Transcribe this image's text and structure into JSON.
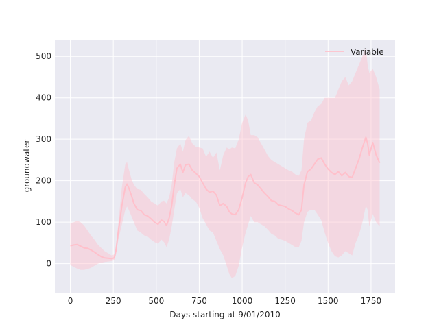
{
  "colors": {
    "background": "#eaeaf2",
    "grid": "#ffffff",
    "series": "#ffc0cb"
  },
  "chart_data": {
    "type": "line",
    "title": "",
    "xlabel": "Days starting at 9/01/2010",
    "ylabel": "groundwater",
    "xlim": [
      -90,
      1890
    ],
    "ylim": [
      -70,
      540
    ],
    "xticks": [
      0,
      250,
      500,
      750,
      1000,
      1250,
      1500,
      1750
    ],
    "yticks": [
      0,
      100,
      200,
      300,
      400,
      500
    ],
    "grid": true,
    "legend_position": "top-right",
    "series": [
      {
        "name": "Variable",
        "band": "shaded uncertainty band",
        "x": [
          0,
          20,
          40,
          60,
          80,
          100,
          120,
          140,
          160,
          180,
          200,
          220,
          240,
          255,
          265,
          280,
          300,
          320,
          330,
          340,
          355,
          370,
          390,
          410,
          430,
          450,
          470,
          490,
          510,
          530,
          545,
          560,
          575,
          590,
          605,
          620,
          640,
          655,
          670,
          690,
          710,
          730,
          750,
          770,
          790,
          810,
          830,
          850,
          870,
          890,
          910,
          925,
          940,
          960,
          980,
          1000,
          1020,
          1035,
          1050,
          1070,
          1090,
          1110,
          1130,
          1150,
          1170,
          1190,
          1210,
          1230,
          1250,
          1270,
          1290,
          1310,
          1330,
          1345,
          1360,
          1380,
          1400,
          1420,
          1440,
          1460,
          1480,
          1500,
          1520,
          1540,
          1560,
          1580,
          1600,
          1620,
          1640,
          1660,
          1680,
          1700,
          1720,
          1730,
          1740,
          1760,
          1780,
          1800
        ],
        "y": [
          43,
          45,
          46,
          42,
          38,
          37,
          33,
          28,
          22,
          17,
          14,
          13,
          12,
          14,
          30,
          80,
          140,
          185,
          192,
          183,
          165,
          145,
          130,
          128,
          118,
          115,
          108,
          100,
          95,
          105,
          102,
          92,
          110,
          140,
          190,
          230,
          240,
          220,
          238,
          240,
          225,
          218,
          210,
          195,
          180,
          172,
          175,
          165,
          140,
          145,
          138,
          125,
          120,
          118,
          130,
          160,
          195,
          210,
          215,
          195,
          190,
          180,
          170,
          162,
          152,
          150,
          142,
          140,
          138,
          132,
          128,
          122,
          118,
          130,
          190,
          222,
          228,
          240,
          252,
          255,
          240,
          228,
          220,
          215,
          222,
          212,
          220,
          210,
          208,
          230,
          252,
          280,
          305,
          290,
          262,
          292,
          262,
          243
        ],
        "upper": [
          98,
          100,
          103,
          100,
          92,
          80,
          68,
          58,
          46,
          38,
          30,
          25,
          20,
          22,
          40,
          100,
          185,
          240,
          245,
          228,
          205,
          190,
          180,
          178,
          168,
          160,
          150,
          145,
          140,
          150,
          152,
          145,
          160,
          190,
          245,
          278,
          290,
          270,
          298,
          308,
          290,
          282,
          280,
          278,
          258,
          270,
          255,
          268,
          225,
          262,
          280,
          275,
          280,
          278,
          300,
          340,
          360,
          345,
          310,
          310,
          305,
          290,
          275,
          260,
          250,
          245,
          240,
          235,
          230,
          225,
          222,
          215,
          212,
          225,
          300,
          340,
          345,
          365,
          380,
          385,
          400,
          400,
          400,
          400,
          420,
          440,
          450,
          430,
          440,
          460,
          480,
          500,
          520,
          480,
          460,
          470,
          450,
          420
        ],
        "lower": [
          -3,
          -8,
          -12,
          -15,
          -15,
          -13,
          -10,
          -5,
          0,
          2,
          4,
          5,
          6,
          8,
          20,
          60,
          95,
          130,
          138,
          130,
          115,
          100,
          80,
          75,
          68,
          65,
          58,
          52,
          48,
          58,
          52,
          40,
          58,
          90,
          130,
          170,
          180,
          160,
          170,
          165,
          155,
          150,
          135,
          110,
          95,
          80,
          75,
          55,
          35,
          20,
          -5,
          -25,
          -35,
          -30,
          -5,
          40,
          75,
          95,
          115,
          100,
          100,
          95,
          90,
          82,
          72,
          68,
          60,
          58,
          55,
          50,
          45,
          40,
          40,
          55,
          100,
          125,
          130,
          130,
          118,
          105,
          75,
          50,
          30,
          18,
          15,
          20,
          30,
          25,
          20,
          50,
          70,
          100,
          140,
          130,
          90,
          120,
          100,
          90
        ]
      }
    ]
  }
}
